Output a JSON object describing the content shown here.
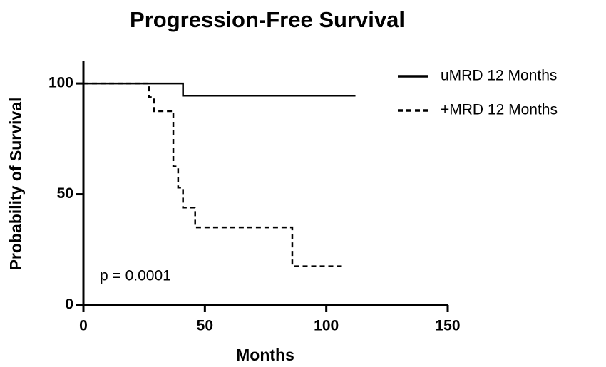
{
  "chart_data": {
    "type": "step",
    "title": "Progression-Free Survival",
    "xlabel": "Months",
    "ylabel": "Probability of Survival",
    "annotation": "p = 0.0001",
    "xlim": [
      0,
      150
    ],
    "xticks": [
      0,
      50,
      100,
      150
    ],
    "ylim": [
      0,
      110
    ],
    "yticks": [
      0,
      50,
      100
    ],
    "legend": "top-right",
    "series": [
      {
        "name": "uMRD 12 Months",
        "color": "#000000",
        "dash": false,
        "x": [
          0,
          41,
          112
        ],
        "values": [
          100,
          94.5,
          94.5
        ]
      },
      {
        "name": "+MRD 12 Months",
        "color": "#000000",
        "dash": true,
        "x": [
          0,
          27,
          29,
          37,
          39,
          41,
          46,
          86,
          107
        ],
        "values": [
          100,
          93.8,
          87.5,
          62.5,
          53,
          44,
          35,
          17.5,
          17.5
        ]
      }
    ]
  }
}
